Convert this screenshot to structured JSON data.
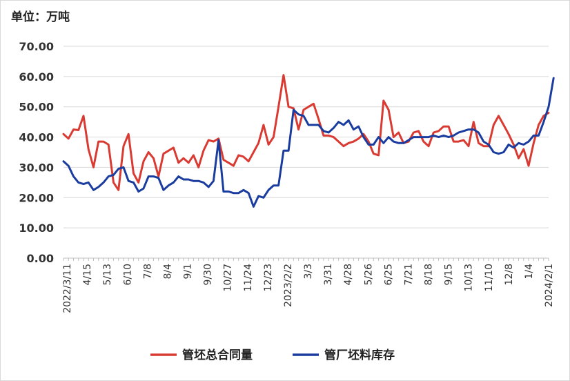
{
  "chart_data": {
    "type": "line",
    "unit_label": "单位：万吨",
    "ylim": [
      0,
      70
    ],
    "yticks": [
      "0.00",
      "10.00",
      "20.00",
      "30.00",
      "40.00",
      "50.00",
      "60.00",
      "70.00"
    ],
    "grid": "horizontal",
    "legend_position": "bottom",
    "x_tick_labels": [
      "2022/3/11",
      "4/15",
      "5/13",
      "6/10",
      "7/8",
      "8/4",
      "9/1",
      "9/30",
      "10/27",
      "11/24",
      "12/23",
      "2023/2/2",
      "3/3",
      "3/31",
      "4/28",
      "5/26",
      "6/25",
      "7/21",
      "8/18",
      "9/15",
      "10/13",
      "11/10",
      "12/8",
      "1/4",
      "2024/2/1"
    ],
    "series": [
      {
        "name": "管坯总合同量",
        "color": "#d93a32",
        "values": [
          41,
          39.5,
          42.5,
          42.3,
          47,
          36,
          30,
          38.5,
          38.5,
          37.5,
          25,
          22.5,
          37,
          41,
          28,
          25,
          32,
          35,
          33,
          27,
          34.5,
          35.5,
          36.5,
          31.5,
          33,
          31.5,
          34,
          30,
          35.5,
          39,
          38.5,
          39.5,
          32.5,
          31.5,
          30.5,
          34,
          33.5,
          32,
          35,
          38,
          44,
          37.5,
          40,
          50,
          60.5,
          50,
          49.5,
          42.5,
          49,
          50,
          51,
          46,
          40.5,
          40.5,
          40,
          38.5,
          37,
          38,
          38.5,
          39.5,
          41,
          38.5,
          34.5,
          34,
          52,
          49,
          40,
          41.5,
          38,
          38.5,
          41.5,
          42,
          38.5,
          37,
          41.5,
          42,
          43.5,
          43.5,
          38.5,
          38.5,
          39,
          37,
          45,
          38,
          37,
          37,
          44,
          47,
          44,
          41,
          37.5,
          33,
          36,
          30.5,
          38,
          44,
          47,
          48
        ]
      },
      {
        "name": "管厂坯料库存",
        "color": "#1a3c9e",
        "values": [
          32,
          30.5,
          27,
          25,
          24.5,
          25,
          22.5,
          23.5,
          25,
          27,
          27.5,
          29.5,
          30,
          25.5,
          25,
          22,
          23,
          27,
          27,
          26.5,
          22.5,
          24,
          25,
          27,
          26,
          26,
          25.5,
          25.5,
          25,
          23.5,
          25.5,
          39,
          22,
          22,
          21.5,
          21.5,
          22.5,
          21.5,
          17,
          20.5,
          20,
          22.5,
          24,
          24,
          35.5,
          35.5,
          49,
          47.5,
          47,
          44,
          44,
          44,
          42,
          41.5,
          43,
          45,
          44,
          45.5,
          42.5,
          43.5,
          40,
          37.5,
          37.5,
          40,
          38,
          40,
          38.5,
          38,
          38,
          39,
          40,
          40,
          40,
          40,
          40.5,
          40,
          40.5,
          40,
          40.5,
          41.5,
          42,
          42.5,
          42.5,
          41.5,
          38.5,
          37.5,
          35,
          34.5,
          35,
          37.5,
          36.5,
          38,
          37.5,
          38.5,
          40.5,
          40.5,
          45,
          50,
          59.5
        ]
      }
    ]
  }
}
